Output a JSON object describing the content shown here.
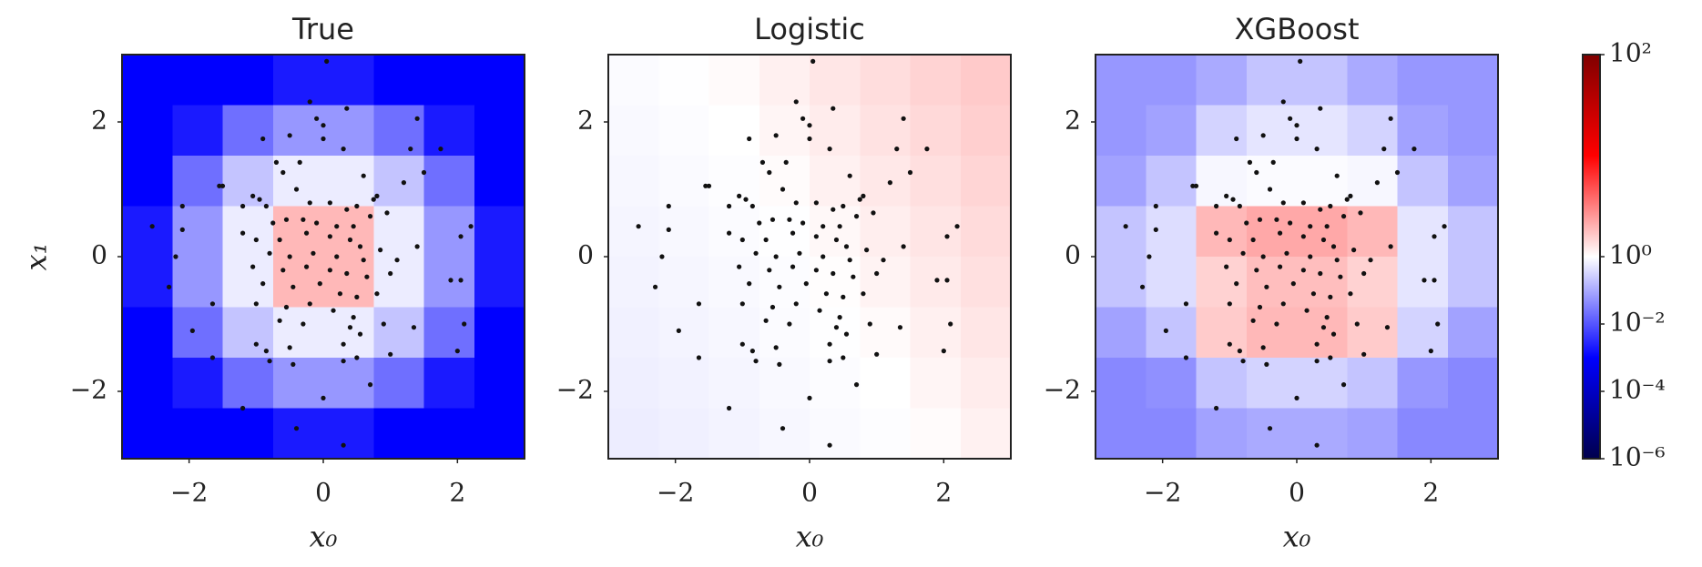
{
  "chart_data": [
    {
      "type": "heatmap",
      "title": "True",
      "xlabel": "x₀",
      "ylabel": "x₁",
      "xlim": [
        -3,
        3
      ],
      "ylim": [
        -3,
        3
      ],
      "xticks": [
        {
          "value": -2,
          "label": "−2"
        },
        0,
        2
      ],
      "yticks": [
        {
          "value": -2,
          "label": "−2"
        },
        0,
        2
      ],
      "z": [
        [
          0.001,
          0.001,
          0.001,
          0.002,
          0.002,
          0.001,
          0.001,
          0.001
        ],
        [
          0.001,
          0.002,
          0.02,
          0.06,
          0.06,
          0.02,
          0.002,
          0.001
        ],
        [
          0.001,
          0.02,
          0.2,
          0.6,
          0.6,
          0.2,
          0.02,
          0.001
        ],
        [
          0.002,
          0.06,
          0.6,
          1.9,
          1.9,
          0.6,
          0.06,
          0.002
        ],
        [
          0.002,
          0.06,
          0.6,
          1.9,
          1.9,
          0.6,
          0.06,
          0.002
        ],
        [
          0.001,
          0.02,
          0.2,
          0.6,
          0.6,
          0.2,
          0.02,
          0.001
        ],
        [
          0.001,
          0.002,
          0.02,
          0.06,
          0.06,
          0.02,
          0.002,
          0.001
        ],
        [
          0.001,
          0.001,
          0.001,
          0.002,
          0.002,
          0.001,
          0.001,
          0.001
        ]
      ],
      "x": [
        0.05,
        -0.2,
        -0.1,
        0,
        0.35,
        1.4,
        -0.9,
        -0.5,
        0,
        0.3,
        -0.7,
        -0.35,
        1.3,
        1.75,
        -1.55,
        -1.5,
        -1.05,
        -0.95,
        -0.6,
        -0.4,
        0.6,
        0.8,
        0.75,
        1.2,
        1.5,
        -2.1,
        -1.2,
        -0.85,
        -0.2,
        0.1,
        0.35,
        0.5,
        0.7,
        0.95,
        -0.75,
        -0.55,
        -0.3,
        -0.1,
        0.2,
        0.45,
        -2.55,
        -2.1,
        2.2,
        2.05,
        -1.2,
        -1.0,
        -0.65,
        -0.25,
        0.1,
        0.4,
        0.55,
        0.85,
        1.4,
        -2.2,
        -0.8,
        -0.5,
        -0.15,
        0.2,
        0.6,
        1.1,
        -1.05,
        -0.6,
        -0.25,
        0.1,
        0.35,
        0.65,
        1.0,
        1.9,
        2.05,
        -2.3,
        -0.9,
        -0.45,
        -0.05,
        0.25,
        0.5,
        0.8,
        -1.0,
        -0.55,
        -0.2,
        0.15,
        0.45,
        -1.65,
        -0.65,
        -0.3,
        0.4,
        0.55,
        0.9,
        -1.95,
        -1.0,
        -0.85,
        -0.5,
        0.3,
        0.5,
        1.35,
        2.1,
        -1.65,
        -0.8,
        -0.45,
        0.3,
        1.0,
        2.0,
        0.7,
        0,
        -1.2,
        -0.4,
        0.3
      ],
      "y": [
        2.9,
        2.3,
        2.05,
        1.95,
        2.2,
        2.05,
        1.75,
        1.8,
        1.75,
        1.6,
        1.4,
        1.4,
        1.6,
        1.6,
        1.05,
        1.05,
        0.9,
        0.85,
        1.25,
        1.0,
        1.2,
        0.9,
        0.85,
        1.1,
        1.25,
        0.75,
        0.75,
        0.75,
        0.8,
        0.8,
        0.7,
        0.75,
        0.6,
        0.65,
        0.5,
        0.55,
        0.55,
        0.5,
        0.45,
        0.45,
        0.45,
        0.4,
        0.45,
        0.3,
        0.35,
        0.25,
        0.25,
        0.35,
        0.3,
        0.25,
        0.15,
        0.1,
        0.15,
        0,
        0.05,
        0,
        0.05,
        0,
        -0.05,
        -0.05,
        -0.15,
        -0.2,
        -0.15,
        -0.2,
        -0.25,
        -0.3,
        -0.25,
        -0.35,
        -0.35,
        -0.45,
        -0.4,
        -0.45,
        -0.4,
        -0.55,
        -0.6,
        -0.55,
        -0.7,
        -0.75,
        -0.7,
        -0.8,
        -0.9,
        -0.7,
        -0.95,
        -1.0,
        -1.05,
        -1.15,
        -1.0,
        -1.1,
        -1.3,
        -1.4,
        -1.35,
        -1.3,
        -1.5,
        -1.05,
        -1.0,
        -1.5,
        -1.55,
        -1.6,
        -1.55,
        -1.45,
        -1.4,
        -1.9,
        -2.1,
        -2.25,
        -2.55,
        -2.8
      ]
    },
    {
      "type": "heatmap",
      "title": "Logistic",
      "xlabel": "x₀",
      "xlim": [
        -3,
        3
      ],
      "ylim": [
        -3,
        3
      ],
      "xticks": [
        {
          "value": -2,
          "label": "−2"
        },
        0,
        2
      ],
      "yticks": [
        {
          "value": -2,
          "label": "−2"
        },
        0,
        2
      ],
      "z": [
        [
          0.89,
          0.97,
          1.05,
          1.15,
          1.25,
          1.36,
          1.49,
          1.62
        ],
        [
          0.84,
          0.92,
          1,
          1.09,
          1.19,
          1.3,
          1.41,
          1.54
        ],
        [
          0.8,
          0.87,
          0.95,
          1.04,
          1.13,
          1.23,
          1.34,
          1.46
        ],
        [
          0.76,
          0.83,
          0.9,
          0.98,
          1.07,
          1.17,
          1.27,
          1.39
        ],
        [
          0.72,
          0.79,
          0.86,
          0.93,
          1.02,
          1.11,
          1.21,
          1.32
        ],
        [
          0.68,
          0.75,
          0.81,
          0.89,
          0.97,
          1.05,
          1.15,
          1.25
        ],
        [
          0.65,
          0.71,
          0.77,
          0.84,
          0.92,
          1,
          1.09,
          1.19
        ],
        [
          0.62,
          0.67,
          0.73,
          0.8,
          0.87,
          0.95,
          1.04,
          1.13
        ]
      ],
      "x": [
        0.05,
        -0.2,
        -0.1,
        0,
        0.35,
        1.4,
        -0.9,
        -0.5,
        0,
        0.3,
        -0.7,
        -0.35,
        1.3,
        1.75,
        -1.55,
        -1.5,
        -1.05,
        -0.95,
        -0.6,
        -0.4,
        0.6,
        0.8,
        0.75,
        1.2,
        1.5,
        -2.1,
        -1.2,
        -0.85,
        -0.2,
        0.1,
        0.35,
        0.5,
        0.7,
        0.95,
        -0.75,
        -0.55,
        -0.3,
        -0.1,
        0.2,
        0.45,
        -2.55,
        -2.1,
        2.2,
        2.05,
        -1.2,
        -1.0,
        -0.65,
        -0.25,
        0.1,
        0.4,
        0.55,
        0.85,
        1.4,
        -2.2,
        -0.8,
        -0.5,
        -0.15,
        0.2,
        0.6,
        1.1,
        -1.05,
        -0.6,
        -0.25,
        0.1,
        0.35,
        0.65,
        1.0,
        1.9,
        2.05,
        -2.3,
        -0.9,
        -0.45,
        -0.05,
        0.25,
        0.5,
        0.8,
        -1.0,
        -0.55,
        -0.2,
        0.15,
        0.45,
        -1.65,
        -0.65,
        -0.3,
        0.4,
        0.55,
        0.9,
        -1.95,
        -1.0,
        -0.85,
        -0.5,
        0.3,
        0.5,
        1.35,
        2.1,
        -1.65,
        -0.8,
        -0.45,
        0.3,
        1.0,
        2.0,
        0.7,
        0,
        -1.2,
        -0.4,
        0.3
      ],
      "y": [
        2.9,
        2.3,
        2.05,
        1.95,
        2.2,
        2.05,
        1.75,
        1.8,
        1.75,
        1.6,
        1.4,
        1.4,
        1.6,
        1.6,
        1.05,
        1.05,
        0.9,
        0.85,
        1.25,
        1.0,
        1.2,
        0.9,
        0.85,
        1.1,
        1.25,
        0.75,
        0.75,
        0.75,
        0.8,
        0.8,
        0.7,
        0.75,
        0.6,
        0.65,
        0.5,
        0.55,
        0.55,
        0.5,
        0.45,
        0.45,
        0.45,
        0.4,
        0.45,
        0.3,
        0.35,
        0.25,
        0.25,
        0.35,
        0.3,
        0.25,
        0.15,
        0.1,
        0.15,
        0,
        0.05,
        0,
        0.05,
        0,
        -0.05,
        -0.05,
        -0.15,
        -0.2,
        -0.15,
        -0.2,
        -0.25,
        -0.3,
        -0.25,
        -0.35,
        -0.35,
        -0.45,
        -0.4,
        -0.45,
        -0.4,
        -0.55,
        -0.6,
        -0.55,
        -0.7,
        -0.75,
        -0.7,
        -0.8,
        -0.9,
        -0.7,
        -0.95,
        -1.0,
        -1.05,
        -1.15,
        -1.0,
        -1.1,
        -1.3,
        -1.4,
        -1.35,
        -1.3,
        -1.5,
        -1.05,
        -1.0,
        -1.5,
        -1.55,
        -1.6,
        -1.55,
        -1.45,
        -1.4,
        -1.9,
        -2.1,
        -2.25,
        -2.55,
        -2.8
      ]
    },
    {
      "type": "heatmap",
      "title": "XGBoost",
      "xlabel": "x₀",
      "xlim": [
        -3,
        3
      ],
      "ylim": [
        -3,
        3
      ],
      "xticks": [
        {
          "value": -2,
          "label": "−2"
        },
        0,
        2
      ],
      "yticks": [
        {
          "value": -2,
          "label": "−2"
        },
        0,
        2
      ],
      "z": [
        [
          0.06,
          0.06,
          0.1,
          0.2,
          0.2,
          0.1,
          0.06,
          0.06
        ],
        [
          0.06,
          0.08,
          0.3,
          0.5,
          0.5,
          0.3,
          0.08,
          0.06
        ],
        [
          0.08,
          0.2,
          0.8,
          0.9,
          0.9,
          0.8,
          0.2,
          0.08
        ],
        [
          0.2,
          0.4,
          1.9,
          2.2,
          2.2,
          1.9,
          0.5,
          0.2
        ],
        [
          0.2,
          0.4,
          1.5,
          1.8,
          1.8,
          1.5,
          0.5,
          0.2
        ],
        [
          0.08,
          0.2,
          1.6,
          1.9,
          1.9,
          1.6,
          0.3,
          0.08
        ],
        [
          0.04,
          0.05,
          0.2,
          0.3,
          0.3,
          0.2,
          0.06,
          0.04
        ],
        [
          0.04,
          0.04,
          0.08,
          0.1,
          0.1,
          0.08,
          0.04,
          0.04
        ]
      ],
      "x": [
        0.05,
        -0.2,
        -0.1,
        0,
        0.35,
        1.4,
        -0.9,
        -0.5,
        0,
        0.3,
        -0.7,
        -0.35,
        1.3,
        1.75,
        -1.55,
        -1.5,
        -1.05,
        -0.95,
        -0.6,
        -0.4,
        0.6,
        0.8,
        0.75,
        1.2,
        1.5,
        -2.1,
        -1.2,
        -0.85,
        -0.2,
        0.1,
        0.35,
        0.5,
        0.7,
        0.95,
        -0.75,
        -0.55,
        -0.3,
        -0.1,
        0.2,
        0.45,
        -2.55,
        -2.1,
        2.2,
        2.05,
        -1.2,
        -1.0,
        -0.65,
        -0.25,
        0.1,
        0.4,
        0.55,
        0.85,
        1.4,
        -2.2,
        -0.8,
        -0.5,
        -0.15,
        0.2,
        0.6,
        1.1,
        -1.05,
        -0.6,
        -0.25,
        0.1,
        0.35,
        0.65,
        1.0,
        1.9,
        2.05,
        -2.3,
        -0.9,
        -0.45,
        -0.05,
        0.25,
        0.5,
        0.8,
        -1.0,
        -0.55,
        -0.2,
        0.15,
        0.45,
        -1.65,
        -0.65,
        -0.3,
        0.4,
        0.55,
        0.9,
        -1.95,
        -1.0,
        -0.85,
        -0.5,
        0.3,
        0.5,
        1.35,
        2.1,
        -1.65,
        -0.8,
        -0.45,
        0.3,
        1.0,
        2.0,
        0.7,
        0,
        -1.2,
        -0.4,
        0.3
      ],
      "y": [
        2.9,
        2.3,
        2.05,
        1.95,
        2.2,
        2.05,
        1.75,
        1.8,
        1.75,
        1.6,
        1.4,
        1.4,
        1.6,
        1.6,
        1.05,
        1.05,
        0.9,
        0.85,
        1.25,
        1.0,
        1.2,
        0.9,
        0.85,
        1.1,
        1.25,
        0.75,
        0.75,
        0.75,
        0.8,
        0.8,
        0.7,
        0.75,
        0.6,
        0.65,
        0.5,
        0.55,
        0.55,
        0.5,
        0.45,
        0.45,
        0.45,
        0.4,
        0.45,
        0.3,
        0.35,
        0.25,
        0.25,
        0.35,
        0.3,
        0.25,
        0.15,
        0.1,
        0.15,
        0,
        0.05,
        0,
        0.05,
        0,
        -0.05,
        -0.05,
        -0.15,
        -0.2,
        -0.15,
        -0.2,
        -0.25,
        -0.3,
        -0.25,
        -0.35,
        -0.35,
        -0.45,
        -0.4,
        -0.45,
        -0.4,
        -0.55,
        -0.6,
        -0.55,
        -0.7,
        -0.75,
        -0.7,
        -0.8,
        -0.9,
        -0.7,
        -0.95,
        -1.0,
        -1.05,
        -1.15,
        -1.0,
        -1.1,
        -1.3,
        -1.4,
        -1.35,
        -1.3,
        -1.5,
        -1.05,
        -1.0,
        -1.5,
        -1.55,
        -1.6,
        -1.55,
        -1.45,
        -1.4,
        -1.9,
        -2.1,
        -2.25,
        -2.55,
        -2.8
      ]
    }
  ],
  "colorbar": {
    "colormap": "seismic",
    "scale": "log",
    "clim": [
      1e-06,
      100
    ],
    "center": 1,
    "ticks": [
      {
        "value": 100,
        "label": "10²"
      },
      {
        "value": 1,
        "label": "10⁰"
      },
      {
        "value": 0.01,
        "label": "10⁻²"
      },
      {
        "value": 0.0001,
        "label": "10⁻⁴"
      },
      {
        "value": 1e-06,
        "label": "10⁻⁶"
      }
    ]
  }
}
